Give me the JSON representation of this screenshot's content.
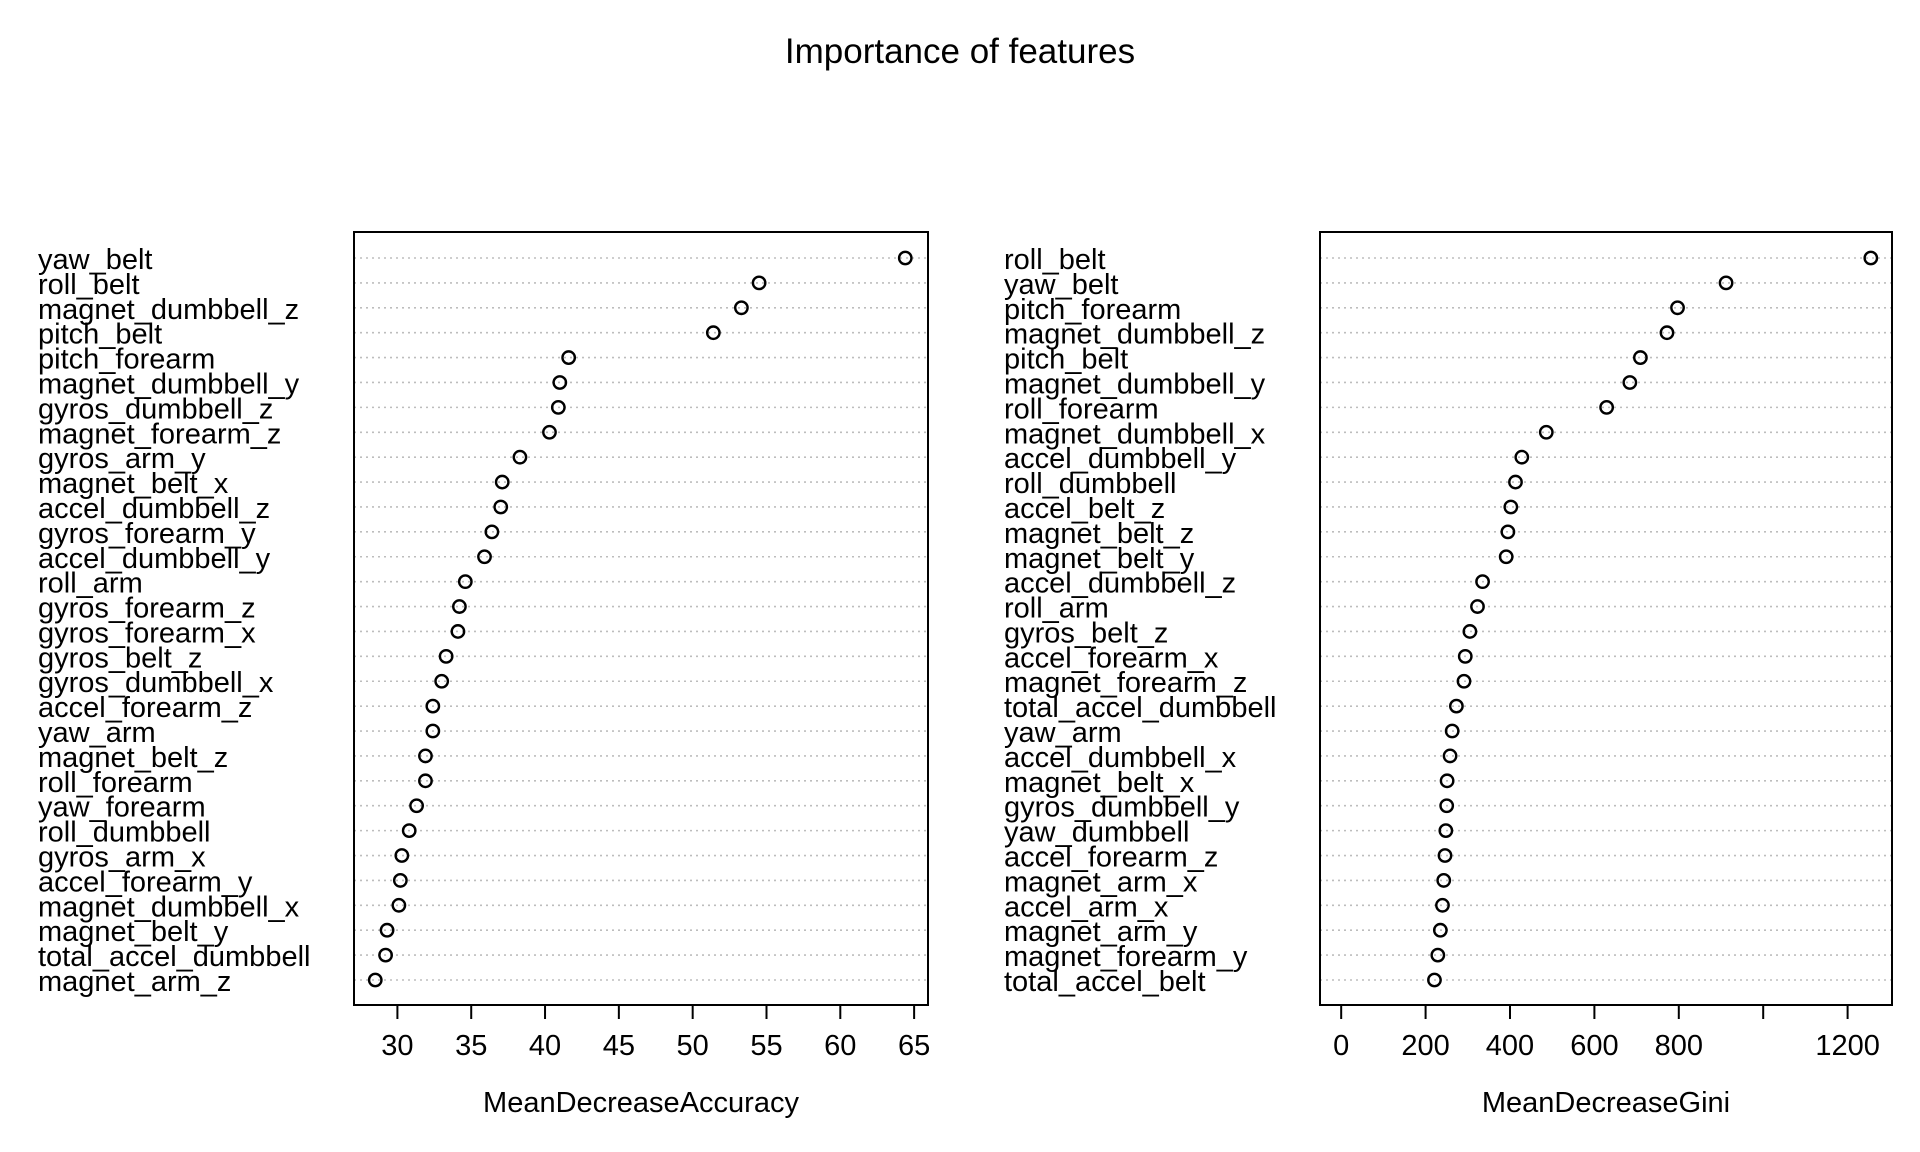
{
  "figure": {
    "title": "Importance of features"
  },
  "chart_data": [
    {
      "type": "scatter",
      "subtype": "dotchart",
      "xlabel": "MeanDecreaseAccuracy",
      "xlim": [
        28.5,
        64.5
      ],
      "xticks": [
        30,
        35,
        40,
        45,
        50,
        55,
        60,
        65
      ],
      "grid": true,
      "categories": [
        "yaw_belt",
        "roll_belt",
        "magnet_dumbbell_z",
        "pitch_belt",
        "pitch_forearm",
        "magnet_dumbbell_y",
        "gyros_dumbbell_z",
        "magnet_forearm_z",
        "gyros_arm_y",
        "magnet_belt_x",
        "accel_dumbbell_z",
        "gyros_forearm_y",
        "accel_dumbbell_y",
        "roll_arm",
        "gyros_forearm_z",
        "gyros_forearm_x",
        "gyros_belt_z",
        "gyros_dumbbell_x",
        "accel_forearm_z",
        "yaw_arm",
        "magnet_belt_z",
        "roll_forearm",
        "yaw_forearm",
        "roll_dumbbell",
        "gyros_arm_x",
        "accel_forearm_y",
        "magnet_dumbbell_x",
        "magnet_belt_y",
        "total_accel_dumbbell",
        "magnet_arm_z"
      ],
      "values": [
        64.4,
        54.5,
        53.3,
        51.4,
        41.6,
        41.0,
        40.9,
        40.3,
        38.3,
        37.1,
        37.0,
        36.4,
        35.9,
        34.6,
        34.2,
        34.1,
        33.3,
        33.0,
        32.4,
        32.4,
        31.9,
        31.9,
        31.3,
        30.8,
        30.3,
        30.2,
        30.1,
        29.3,
        29.2,
        28.5
      ]
    },
    {
      "type": "scatter",
      "subtype": "dotchart",
      "xlabel": "MeanDecreaseGini",
      "xlim": [
        0,
        1255
      ],
      "xticks": [
        0,
        200,
        400,
        600,
        800,
        1000,
        1200
      ],
      "xtick_labels": [
        "0",
        "200",
        "400",
        "600",
        "800",
        "",
        "1200"
      ],
      "grid": true,
      "categories": [
        "roll_belt",
        "yaw_belt",
        "pitch_forearm",
        "magnet_dumbbell_z",
        "pitch_belt",
        "magnet_dumbbell_y",
        "roll_forearm",
        "magnet_dumbbell_x",
        "accel_dumbbell_y",
        "roll_dumbbell",
        "accel_belt_z",
        "magnet_belt_z",
        "magnet_belt_y",
        "accel_dumbbell_z",
        "roll_arm",
        "gyros_belt_z",
        "accel_forearm_x",
        "magnet_forearm_z",
        "total_accel_dumbbell",
        "yaw_arm",
        "accel_dumbbell_x",
        "magnet_belt_x",
        "gyros_dumbbell_y",
        "yaw_dumbbell",
        "accel_forearm_z",
        "magnet_arm_x",
        "accel_arm_x",
        "magnet_arm_y",
        "magnet_forearm_y",
        "total_accel_belt"
      ],
      "values": [
        1255,
        912,
        797,
        772,
        709,
        684,
        629,
        486,
        428,
        413,
        402,
        395,
        391,
        335,
        323,
        305,
        294,
        291,
        273,
        263,
        258,
        251,
        250,
        248,
        246,
        243,
        240,
        235,
        229,
        221
      ]
    }
  ]
}
